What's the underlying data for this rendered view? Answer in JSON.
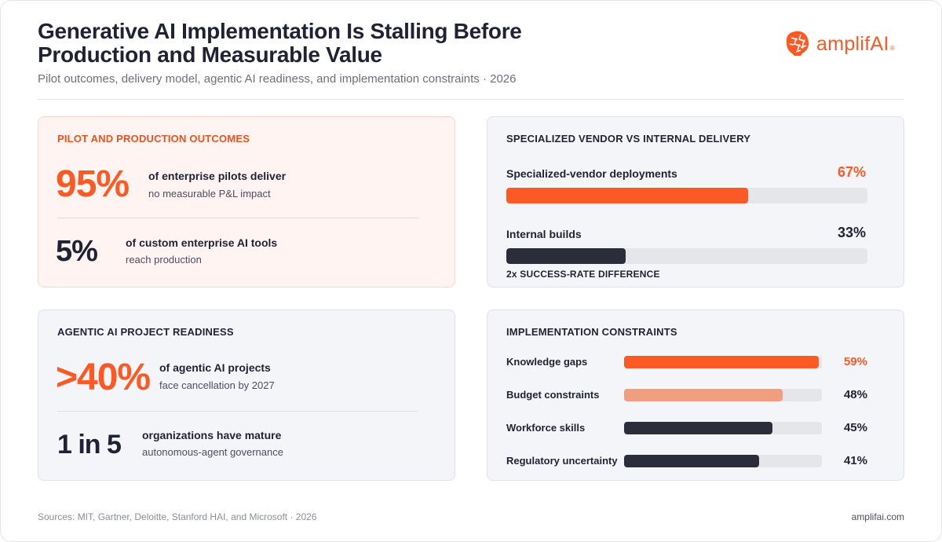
{
  "header": {
    "title": "Generative AI Implementation Is Stalling Before Production and Measurable Value",
    "subtitle": "Pilot outcomes, delivery model, agentic AI readiness, and implementation constraints · 2026",
    "logo_text": "amplifAI",
    "logo_reg": "®"
  },
  "colors": {
    "accent": "#fb5a25",
    "accent_light": "#f29c80",
    "dark": "#2b2d3a",
    "track": "#e5e6ea"
  },
  "pilot": {
    "title": "PILOT AND PRODUCTION OUTCOMES",
    "stat1": {
      "value": "95%",
      "line1": "of enterprise pilots deliver",
      "line2": "no measurable P&L impact"
    },
    "stat2": {
      "value": "5%",
      "line1": "of custom enterprise AI tools",
      "line2": "reach production"
    }
  },
  "agentic": {
    "title": "AGENTIC AI PROJECT READINESS",
    "stat1": {
      "value": ">40%",
      "line1": "of agentic AI projects",
      "line2": "face cancellation by 2027"
    },
    "stat2": {
      "value": "1 in 5",
      "line1": "organizations have mature",
      "line2": "autonomous-agent governance"
    }
  },
  "chart_data": [
    {
      "type": "bar",
      "title": "SPECIALIZED VENDOR VS INTERNAL DELIVERY",
      "categories": [
        "Specialized-vendor deployments",
        "Internal builds"
      ],
      "values": [
        67,
        33
      ],
      "value_labels": [
        "67%",
        "33%"
      ],
      "colors": [
        "#fb5a25",
        "#2b2d3a"
      ],
      "ylim": [
        0,
        100
      ],
      "annotation": "2x SUCCESS-RATE DIFFERENCE"
    },
    {
      "type": "bar",
      "title": "IMPLEMENTATION CONSTRAINTS",
      "categories": [
        "Knowledge gaps",
        "Budget constraints",
        "Workforce skills",
        "Regulatory uncertainty"
      ],
      "values": [
        59,
        48,
        45,
        41
      ],
      "value_labels": [
        "59%",
        "48%",
        "45%",
        "41%"
      ],
      "colors": [
        "#fb5a25",
        "#f29c80",
        "#2b2d3a",
        "#2b2d3a"
      ],
      "ylim": [
        0,
        60
      ]
    }
  ],
  "footer": {
    "sources": "Sources: MIT, Gartner, Deloitte, Stanford HAI, and Microsoft · 2026",
    "site": "amplifai.com"
  }
}
